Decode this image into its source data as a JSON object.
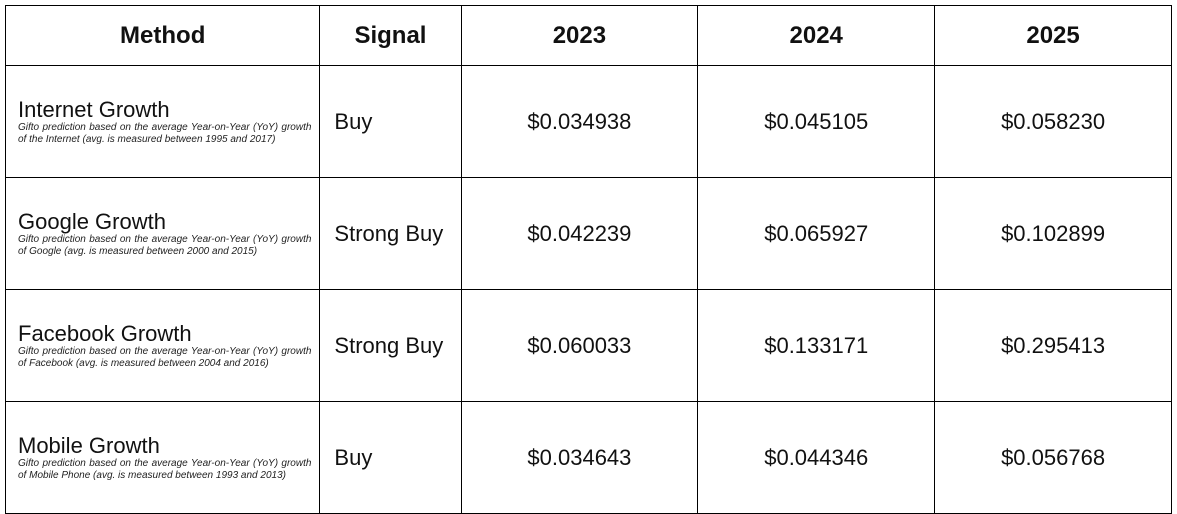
{
  "headers": [
    "Method",
    "Signal",
    "2023",
    "2024",
    "2025"
  ],
  "rows": [
    {
      "method": "Internet Growth",
      "description": "Gifto prediction based on the average Year-on-Year (YoY) growth of the Internet (avg. is measured between 1995 and 2017)",
      "signal": "Buy",
      "values": [
        "$0.034938",
        "$0.045105",
        "$0.058230"
      ]
    },
    {
      "method": "Google Growth",
      "description": "Gifto prediction based on the average Year-on-Year (YoY) growth of Google (avg. is measured between 2000 and 2015)",
      "signal": "Strong Buy",
      "values": [
        "$0.042239",
        "$0.065927",
        "$0.102899"
      ]
    },
    {
      "method": "Facebook Growth",
      "description": "Gifto prediction based on the average Year-on-Year (YoY) growth of Facebook (avg. is measured between 2004 and 2016)",
      "signal": "Strong Buy",
      "values": [
        "$0.060033",
        "$0.133171",
        "$0.295413"
      ]
    },
    {
      "method": "Mobile Growth",
      "description": "Gifto prediction based on the average Year-on-Year (YoY) growth of Mobile Phone (avg. is measured between 1993 and 2013)",
      "signal": "Buy",
      "values": [
        "$0.034643",
        "$0.044346",
        "$0.056768"
      ]
    }
  ]
}
